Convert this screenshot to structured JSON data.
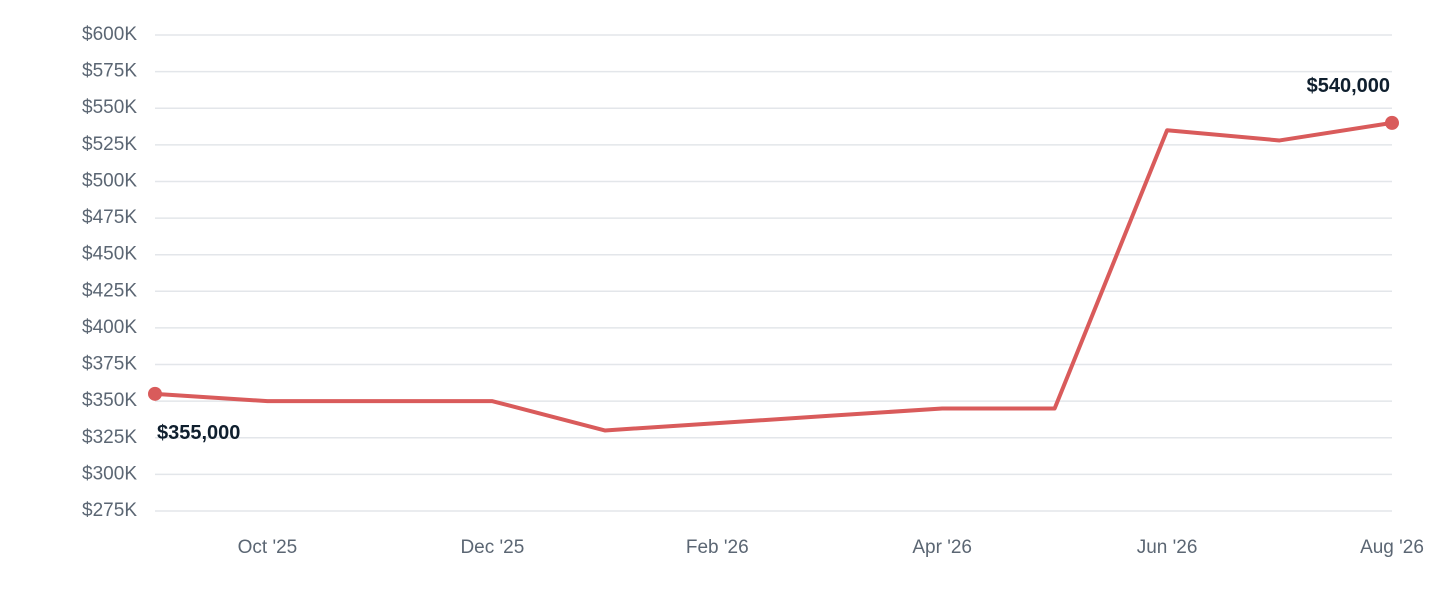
{
  "chart_data": {
    "type": "line",
    "categories": [
      null,
      "Oct '25",
      null,
      "Dec '25",
      null,
      "Feb '26",
      null,
      "Apr '26",
      null,
      "Jun '26",
      null,
      "Aug '26"
    ],
    "series": [
      {
        "color": "#d95b5b",
        "values": [
          355000,
          350000,
          350000,
          350000,
          330000,
          335000,
          340000,
          345000,
          345000,
          535000,
          528000,
          540000
        ],
        "value_labels": [
          "$355,000",
          null,
          null,
          null,
          null,
          null,
          null,
          null,
          null,
          null,
          null,
          "$540,000"
        ]
      }
    ],
    "ylim": [
      275000,
      600000
    ],
    "yticks": [
      {
        "value": 275000,
        "label": "$275K"
      },
      {
        "value": 300000,
        "label": "$300K"
      },
      {
        "value": 325000,
        "label": "$325K"
      },
      {
        "value": 350000,
        "label": "$350K"
      },
      {
        "value": 375000,
        "label": "$375K"
      },
      {
        "value": 400000,
        "label": "$400K"
      },
      {
        "value": 425000,
        "label": "$425K"
      },
      {
        "value": 450000,
        "label": "$450K"
      },
      {
        "value": 475000,
        "label": "$475K"
      },
      {
        "value": 500000,
        "label": "$500K"
      },
      {
        "value": 525000,
        "label": "$525K"
      },
      {
        "value": 550000,
        "label": "$550K"
      },
      {
        "value": 575000,
        "label": "$575K"
      },
      {
        "value": 600000,
        "label": "$600K"
      }
    ],
    "grid": true
  }
}
